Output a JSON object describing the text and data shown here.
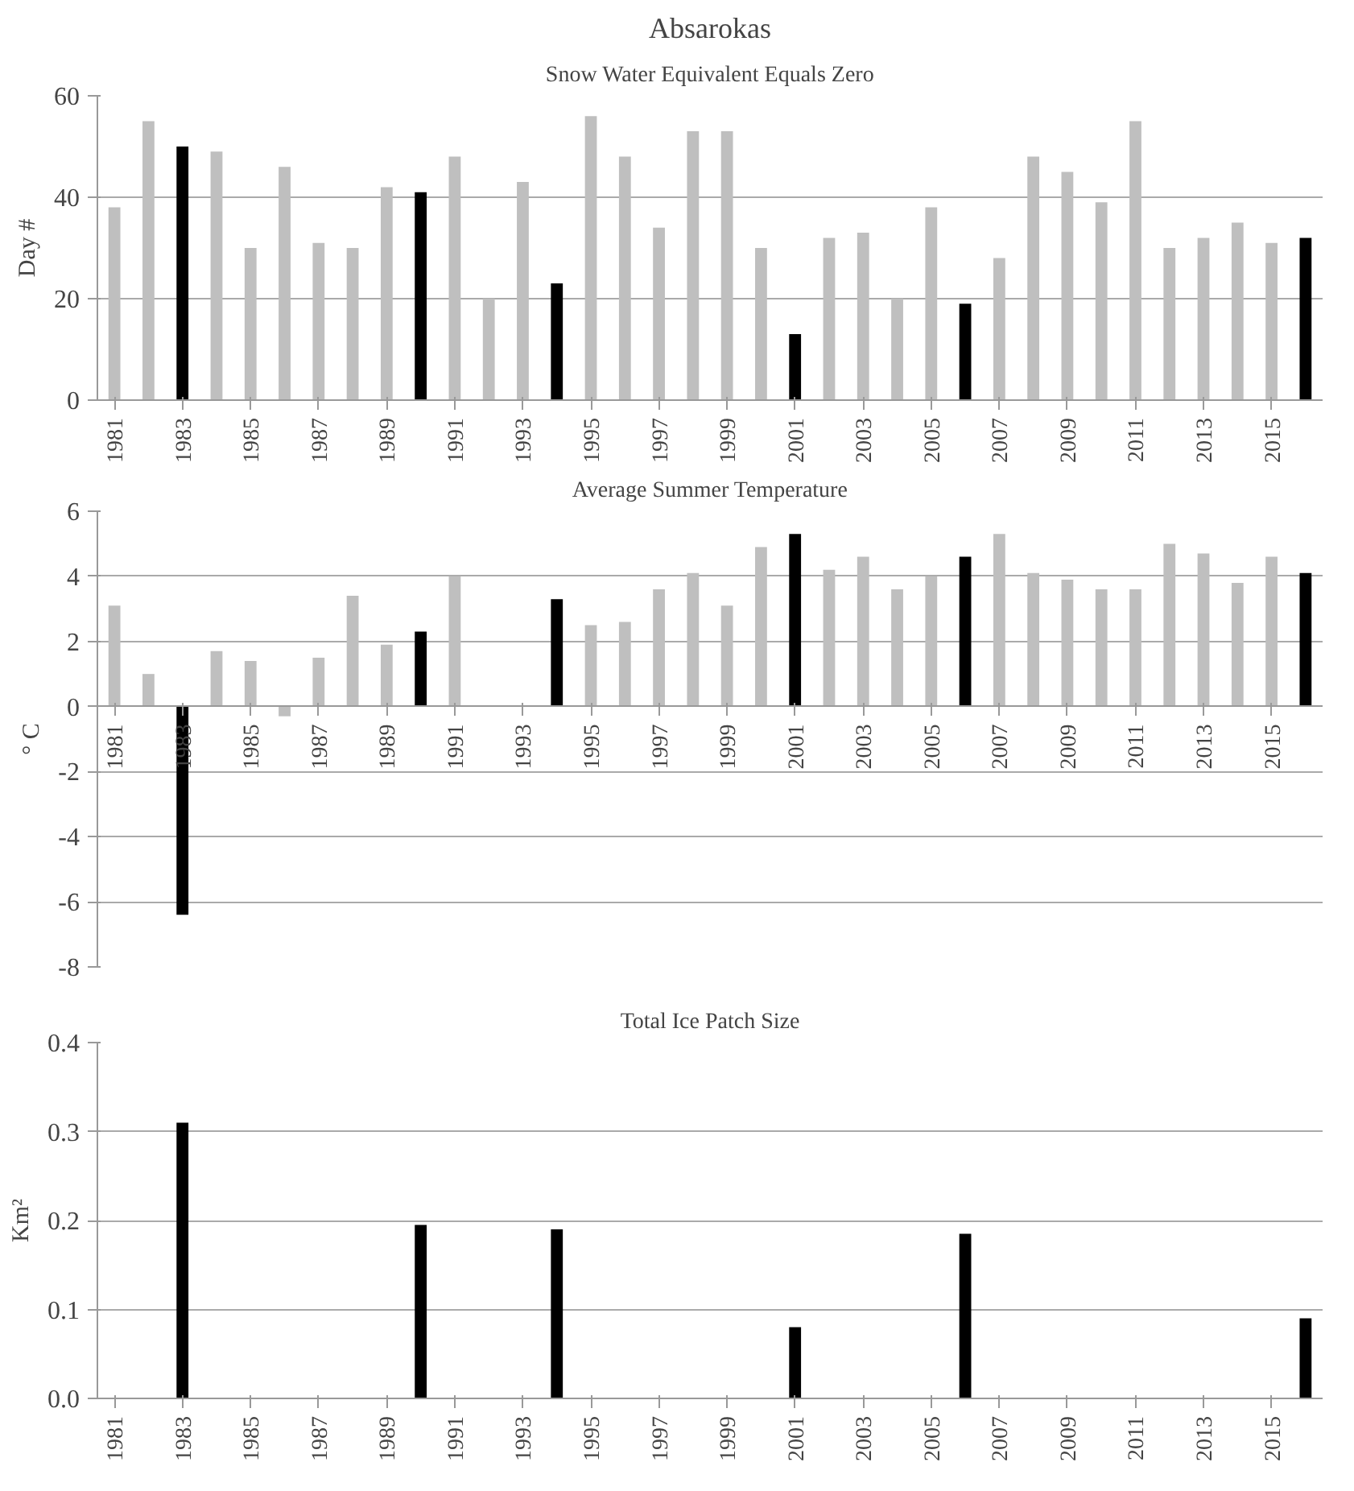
{
  "chart_data": [
    {
      "type": "bar",
      "title": "Absarokas",
      "subtitle": "Snow Water Equivalent Equals Zero",
      "ylabel": "Day #",
      "categories": [
        "1981",
        null,
        "1983",
        null,
        "1985",
        null,
        "1987",
        null,
        "1989",
        null,
        "1991",
        null,
        "1993",
        null,
        "1995",
        null,
        "1997",
        null,
        "1999",
        null,
        "2001",
        null,
        "2003",
        null,
        "2005",
        null,
        "2007",
        null,
        "2009",
        null,
        "2011",
        null,
        "2013",
        null,
        "2015",
        null
      ],
      "values": [
        38,
        55,
        50,
        49,
        30,
        46,
        31,
        30,
        42,
        41,
        48,
        20,
        43,
        23,
        56,
        48,
        34,
        53,
        53,
        30,
        13,
        32,
        33,
        20,
        38,
        19,
        28,
        48,
        45,
        39,
        55,
        30,
        32,
        35,
        31,
        32
      ],
      "colors": [
        "#bfbfbf",
        "#bfbfbf",
        "#000000",
        "#bfbfbf",
        "#bfbfbf",
        "#bfbfbf",
        "#bfbfbf",
        "#bfbfbf",
        "#bfbfbf",
        "#000000",
        "#bfbfbf",
        "#bfbfbf",
        "#bfbfbf",
        "#000000",
        "#bfbfbf",
        "#bfbfbf",
        "#bfbfbf",
        "#bfbfbf",
        "#bfbfbf",
        "#bfbfbf",
        "#000000",
        "#bfbfbf",
        "#bfbfbf",
        "#bfbfbf",
        "#bfbfbf",
        "#000000",
        "#bfbfbf",
        "#bfbfbf",
        "#bfbfbf",
        "#bfbfbf",
        "#bfbfbf",
        "#bfbfbf",
        "#bfbfbf",
        "#bfbfbf",
        "#bfbfbf",
        "#000000"
      ],
      "ylim": [
        0,
        60
      ],
      "yticks": [
        0,
        20,
        40,
        60
      ],
      "grid": "y"
    },
    {
      "type": "bar",
      "title": "Average Summer Temperature",
      "ylabel": "° C",
      "categories": [
        "1981",
        null,
        "1983",
        null,
        "1985",
        null,
        "1987",
        null,
        "1989",
        null,
        "1991",
        null,
        "1993",
        null,
        "1995",
        null,
        "1997",
        null,
        "1999",
        null,
        "2001",
        null,
        "2003",
        null,
        "2005",
        null,
        "2007",
        null,
        "2009",
        null,
        "2011",
        null,
        "2013",
        null,
        "2015",
        null
      ],
      "values": [
        3.1,
        1.0,
        -6.4,
        1.7,
        1.4,
        -0.3,
        1.5,
        3.4,
        1.9,
        2.3,
        4.0,
        null,
        null,
        3.3,
        2.5,
        2.6,
        3.6,
        4.1,
        3.1,
        4.9,
        5.3,
        4.2,
        4.6,
        3.6,
        4.0,
        4.6,
        5.3,
        4.1,
        3.9,
        3.6,
        3.6,
        5.0,
        4.7,
        3.8,
        4.6,
        4.1
      ],
      "colors": [
        "#bfbfbf",
        "#bfbfbf",
        "#000000",
        "#bfbfbf",
        "#bfbfbf",
        "#bfbfbf",
        "#bfbfbf",
        "#bfbfbf",
        "#bfbfbf",
        "#000000",
        "#bfbfbf",
        "#bfbfbf",
        "#bfbfbf",
        "#000000",
        "#bfbfbf",
        "#bfbfbf",
        "#bfbfbf",
        "#bfbfbf",
        "#bfbfbf",
        "#bfbfbf",
        "#000000",
        "#bfbfbf",
        "#bfbfbf",
        "#bfbfbf",
        "#bfbfbf",
        "#000000",
        "#bfbfbf",
        "#bfbfbf",
        "#bfbfbf",
        "#bfbfbf",
        "#bfbfbf",
        "#bfbfbf",
        "#bfbfbf",
        "#bfbfbf",
        "#bfbfbf",
        "#000000"
      ],
      "ylim": [
        -8,
        6
      ],
      "yticks": [
        -8,
        -6,
        -4,
        -2,
        0,
        2,
        4,
        6
      ],
      "grid": "y"
    },
    {
      "type": "bar",
      "title": "Total Ice Patch Size",
      "ylabel": "Km²",
      "categories": [
        "1981",
        null,
        "1983",
        null,
        "1985",
        null,
        "1987",
        null,
        "1989",
        null,
        "1991",
        null,
        "1993",
        null,
        "1995",
        null,
        "1997",
        null,
        "1999",
        null,
        "2001",
        null,
        "2003",
        null,
        "2005",
        null,
        "2007",
        null,
        "2009",
        null,
        "2011",
        null,
        "2013",
        null,
        "2015",
        null
      ],
      "values": [
        null,
        null,
        0.31,
        null,
        null,
        null,
        null,
        null,
        null,
        0.195,
        null,
        null,
        null,
        0.19,
        null,
        null,
        null,
        null,
        null,
        null,
        0.08,
        null,
        null,
        null,
        null,
        0.185,
        null,
        null,
        null,
        null,
        null,
        null,
        null,
        null,
        null,
        0.09
      ],
      "color": "#000000",
      "ylim": [
        0,
        0.4
      ],
      "yticks": [
        {
          "value": 0,
          "label": "0.0"
        },
        {
          "value": 0.1,
          "label": "0.1"
        },
        {
          "value": 0.2,
          "label": "0.2"
        },
        {
          "value": 0.3,
          "label": "0.3"
        },
        {
          "value": 0.4,
          "label": "0.4"
        }
      ],
      "grid": "y"
    }
  ]
}
